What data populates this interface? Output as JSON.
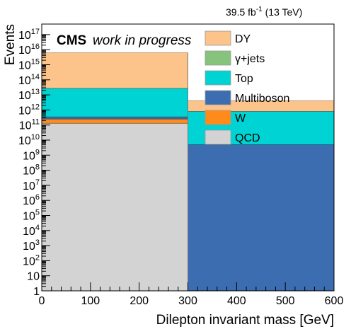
{
  "chart_data": {
    "type": "bar",
    "stacked": true,
    "log_y": true,
    "x_bins": [
      [
        0,
        300
      ],
      [
        300,
        600
      ]
    ],
    "xlim": [
      0,
      600
    ],
    "ylim": [
      1,
      5e+17
    ],
    "x_ticks": [
      0,
      100,
      200,
      300,
      400,
      500,
      600
    ],
    "y_tick_labels": [
      "1",
      "10",
      "10^2",
      "10^3",
      "10^4",
      "10^5",
      "10^6",
      "10^7",
      "10^8",
      "10^9",
      "10^10",
      "10^11",
      "10^12",
      "10^13",
      "10^14",
      "10^15",
      "10^16",
      "10^17"
    ],
    "xlabel": "Dilepton invariant mass [GeV]",
    "ylabel": "Events",
    "lumi_label": "39.5 fb",
    "lumi_exp": "-1",
    "lumi_energy": " (13 TeV)",
    "cms_label": "CMS",
    "extra_label": "work in progress",
    "legend_position": "top-right",
    "grid": false,
    "series": [
      {
        "name": "QCD",
        "color": "#d3d3d3",
        "values": [
          130000000000.0,
          0
        ]
      },
      {
        "name": "W",
        "color": "#ff8c1a",
        "values": [
          120000000000.0,
          0
        ]
      },
      {
        "name": "Multiboson",
        "color": "#3c6db0",
        "values": [
          100000000000.0,
          5000000000.0
        ]
      },
      {
        "name": "γ+jets",
        "color": "#86c47e",
        "values": [
          0,
          0
        ]
      },
      {
        "name": "Top",
        "color": "#00d3d3",
        "values": [
          27000000000000.0,
          800000000000.0
        ]
      },
      {
        "name": "DY",
        "color": "#fcc38a",
        "values": [
          6200000000000000.0,
          3300000000000.0
        ]
      }
    ],
    "legend": [
      {
        "name": "DY",
        "color": "#fcc38a"
      },
      {
        "name": "γ+jets",
        "color": "#86c47e"
      },
      {
        "name": "Top",
        "color": "#00d3d3"
      },
      {
        "name": "Multiboson",
        "color": "#3c6db0"
      },
      {
        "name": "W",
        "color": "#ff8c1a"
      },
      {
        "name": "QCD",
        "color": "#d3d3d3"
      }
    ]
  }
}
